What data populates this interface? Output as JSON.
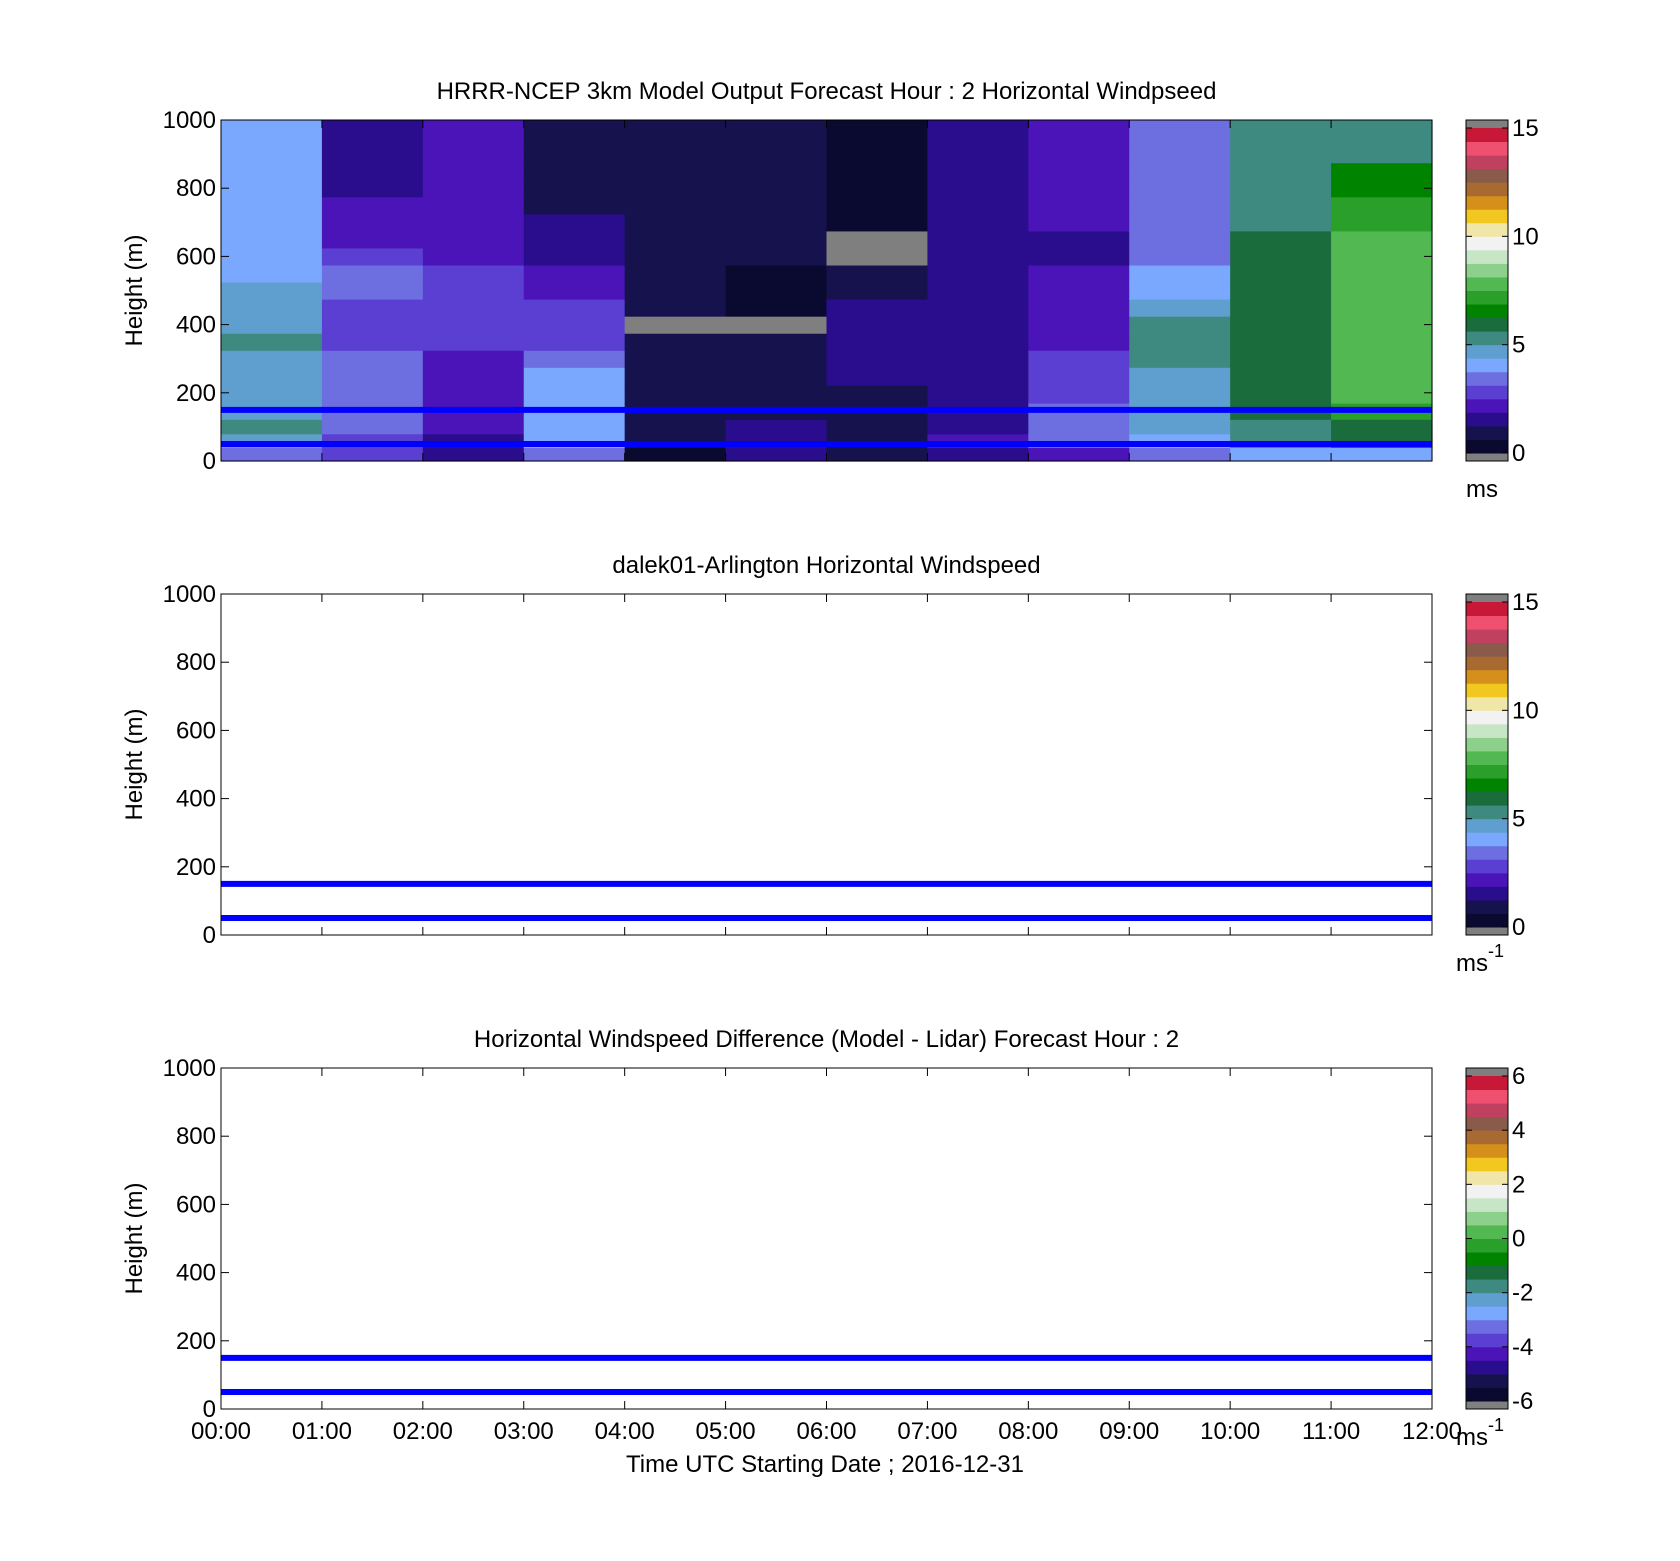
{
  "x_axis_title": "Time UTC  Starting Date ; 2016-12-31",
  "chart_data": [
    {
      "type": "heatmap",
      "title": "HRRR-NCEP 3km Model Output   Forecast Hour : 2 Horizontal Windpseed",
      "ylabel": "Height (m)",
      "ylim": [
        0,
        1000
      ],
      "yticks": [
        "0",
        "200",
        "400",
        "600",
        "800",
        "1000"
      ],
      "xlim": [
        0,
        12
      ],
      "xticks": [
        "00:00",
        "01:00",
        "02:00",
        "03:00",
        "04:00",
        "05:00",
        "06:00",
        "07:00",
        "08:00",
        "09:00",
        "10:00",
        "11:00",
        "12:00"
      ],
      "show_xtick_labels": false,
      "colorbar": {
        "label": "ms",
        "superscript": "",
        "range": [
          0,
          15
        ],
        "ticks": [
          "0",
          "5",
          "10",
          "15"
        ]
      },
      "reference_heights": [
        50,
        150
      ],
      "heights": [
        20,
        60,
        100,
        145,
        195,
        250,
        300,
        350,
        400,
        450,
        500,
        550,
        600,
        650,
        700,
        750,
        800,
        850,
        900,
        950
      ],
      "columns": [
        {
          "hour": 0,
          "speeds": [
            3.4,
            4.8,
            5.0,
            4.9,
            4.6,
            4.6,
            4.9,
            5.0,
            4.9,
            4.9,
            4.4,
            4.3,
            4.2,
            4.2,
            4.2,
            3.8,
            3.8,
            3.8,
            3.8,
            3.8
          ]
        },
        {
          "hour": 1,
          "speeds": [
            2.6,
            2.5,
            3.2,
            3.2,
            3.2,
            3.3,
            3.3,
            3.1,
            3.1,
            3.1,
            3.3,
            3.3,
            3.0,
            2.3,
            2.3,
            2.3,
            1.5,
            1.5,
            1.5,
            1.5
          ]
        },
        {
          "hour": 2,
          "speeds": [
            1.5,
            1.6,
            2.2,
            2.2,
            2.2,
            2.4,
            2.4,
            2.6,
            2.6,
            2.6,
            2.6,
            2.6,
            2.4,
            2.2,
            2.2,
            2.2,
            2.2,
            2.2,
            2.2,
            2.2
          ]
        },
        {
          "hour": 3,
          "speeds": [
            3.3,
            4.2,
            4.0,
            3.8,
            3.8,
            3.8,
            3.5,
            3.0,
            3.0,
            2.6,
            2.1,
            2.0,
            1.5,
            1.3,
            1.3,
            1.2,
            1.0,
            1.0,
            1.0,
            1.0
          ]
        },
        {
          "hour": 4,
          "speeds": [
            0.6,
            0.7,
            1.0,
            1.2,
            1.2,
            1.1,
            0.7,
            0.7,
            15.5,
            0.8,
            0.9,
            0.9,
            1.0,
            1.0,
            0.9,
            0.9,
            0.9,
            0.9,
            0.9,
            0.9
          ]
        },
        {
          "hour": 5,
          "speeds": [
            1.4,
            1.3,
            1.3,
            1.2,
            1.2,
            1.1,
            1.0,
            0.7,
            15.5,
            0.6,
            0.5,
            0.5,
            0.8,
            0.8,
            1.0,
            1.0,
            1.2,
            1.2,
            1.0,
            1.0
          ]
        },
        {
          "hour": 6,
          "speeds": [
            1.0,
            1.1,
            0.9,
            0.8,
            0.8,
            1.3,
            1.4,
            1.4,
            1.3,
            1.3,
            1.0,
            0.9,
            15.5,
            15.5,
            0.4,
            0.4,
            0.6,
            0.6,
            0.6,
            0.6
          ]
        },
        {
          "hour": 7,
          "speeds": [
            1.8,
            1.9,
            1.6,
            1.3,
            1.3,
            1.5,
            1.5,
            1.6,
            1.6,
            1.6,
            1.7,
            1.7,
            1.4,
            1.4,
            1.6,
            1.6,
            1.8,
            1.8,
            1.8,
            1.8
          ]
        },
        {
          "hour": 8,
          "speeds": [
            2.0,
            3.5,
            3.3,
            3.3,
            3.0,
            3.0,
            2.6,
            2.2,
            2.2,
            2.2,
            2.0,
            2.0,
            1.8,
            1.8,
            1.9,
            1.9,
            2.2,
            2.2,
            2.2,
            2.2
          ]
        },
        {
          "hour": 9,
          "speeds": [
            3.5,
            3.8,
            4.8,
            4.9,
            4.9,
            4.9,
            5.0,
            5.0,
            5.0,
            4.4,
            4.3,
            4.3,
            3.7,
            3.3,
            3.3,
            3.3,
            3.6,
            3.6,
            3.4,
            3.4
          ]
        },
        {
          "hour": 10,
          "speeds": [
            3.9,
            5.4,
            5.3,
            6.1,
            6.1,
            6.1,
            6.1,
            6.1,
            6.0,
            6.0,
            5.8,
            5.8,
            5.7,
            5.7,
            5.2,
            5.2,
            5.0,
            5.0,
            5.0,
            5.0
          ]
        },
        {
          "hour": 11,
          "speeds": [
            3.9,
            5.8,
            6.2,
            7.2,
            7.8,
            7.6,
            7.6,
            7.6,
            7.9,
            7.9,
            8.0,
            8.0,
            7.8,
            7.8,
            6.9,
            6.9,
            6.4,
            6.4,
            5.6,
            5.6
          ]
        }
      ]
    },
    {
      "type": "heatmap",
      "title": "dalek01-Arlington  Horizontal Windspeed",
      "ylabel": "Height (m)",
      "ylim": [
        0,
        1000
      ],
      "yticks": [
        "0",
        "200",
        "400",
        "600",
        "800",
        "1000"
      ],
      "xlim": [
        0,
        12
      ],
      "xticks": [
        "00:00",
        "01:00",
        "02:00",
        "03:00",
        "04:00",
        "05:00",
        "06:00",
        "07:00",
        "08:00",
        "09:00",
        "10:00",
        "11:00",
        "12:00"
      ],
      "show_xtick_labels": false,
      "colorbar": {
        "label": "ms",
        "superscript": "-1",
        "range": [
          0,
          15
        ],
        "ticks": [
          "0",
          "5",
          "10",
          "15"
        ]
      },
      "reference_heights": [
        50,
        150
      ],
      "heights": [],
      "columns": []
    },
    {
      "type": "heatmap",
      "title": "Horizontal Windspeed Difference (Model - Lidar) Forecast Hour : 2",
      "ylabel": "Height (m)",
      "ylim": [
        0,
        1000
      ],
      "yticks": [
        "0",
        "200",
        "400",
        "600",
        "800",
        "1000"
      ],
      "xlim": [
        0,
        12
      ],
      "xticks": [
        "00:00",
        "01:00",
        "02:00",
        "03:00",
        "04:00",
        "05:00",
        "06:00",
        "07:00",
        "08:00",
        "09:00",
        "10:00",
        "11:00",
        "12:00"
      ],
      "show_xtick_labels": true,
      "colorbar": {
        "label": "ms",
        "superscript": "-1",
        "range": [
          -6,
          6
        ],
        "ticks": [
          "-6",
          "-4",
          "-2",
          "0",
          "2",
          "4",
          "6"
        ]
      },
      "reference_heights": [
        50,
        150
      ],
      "heights": [],
      "columns": []
    }
  ],
  "colormap": [
    "#0a0a30",
    "#16124e",
    "#2a0d8c",
    "#4b14b8",
    "#5a3fd2",
    "#6d6ee0",
    "#7aa8ff",
    "#5f9fcf",
    "#3e8a80",
    "#1a6c3c",
    "#008400",
    "#2a9f2a",
    "#52b852",
    "#8cd08c",
    "#c6e6c6",
    "#f2f2f2",
    "#f0e6a8",
    "#f2c820",
    "#d4901a",
    "#a86a30",
    "#8a5a4a",
    "#c04060",
    "#f05070",
    "#c81838"
  ],
  "colormap_over": "#7f7f7f",
  "colormap_under": "#7f7f7f",
  "line_color": "#0000ff"
}
